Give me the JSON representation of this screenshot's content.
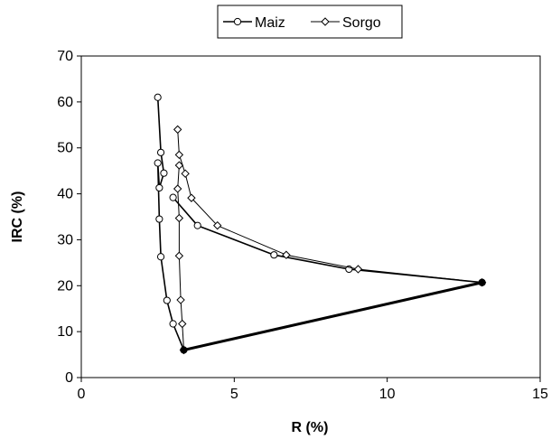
{
  "chart_data": {
    "type": "scatter",
    "xlabel": "R (%)",
    "ylabel": "IRC (%)",
    "xlim": [
      0,
      15
    ],
    "ylim": [
      0,
      70
    ],
    "xticks": [
      0,
      5,
      10,
      15
    ],
    "yticks": [
      0,
      10,
      20,
      30,
      40,
      50,
      60,
      70
    ],
    "grid": false,
    "legend_position": "top-center",
    "series": [
      {
        "name": "Maiz",
        "marker": "circle",
        "color": "#000000",
        "x": [
          2.5,
          2.6,
          2.7,
          2.55,
          2.5,
          2.55,
          2.6,
          2.8,
          3.0,
          3.35,
          13.1,
          8.75,
          6.3,
          3.8,
          3.0
        ],
        "y": [
          61.0,
          49.0,
          44.5,
          41.3,
          46.7,
          34.5,
          26.3,
          16.8,
          11.7,
          6.0,
          20.7,
          23.6,
          26.7,
          33.1,
          39.2
        ]
      },
      {
        "name": "Sorgo",
        "marker": "diamond",
        "color": "#000000",
        "x": [
          3.15,
          3.2,
          3.4,
          3.6,
          4.45,
          6.7,
          9.05,
          13.1,
          3.35,
          3.3,
          3.25,
          3.2,
          3.2,
          3.15,
          3.2
        ],
        "y": [
          54.0,
          48.5,
          44.4,
          39.1,
          33.1,
          26.7,
          23.6,
          20.7,
          6.0,
          11.7,
          16.9,
          26.5,
          34.7,
          41.1,
          46.2
        ]
      }
    ]
  }
}
